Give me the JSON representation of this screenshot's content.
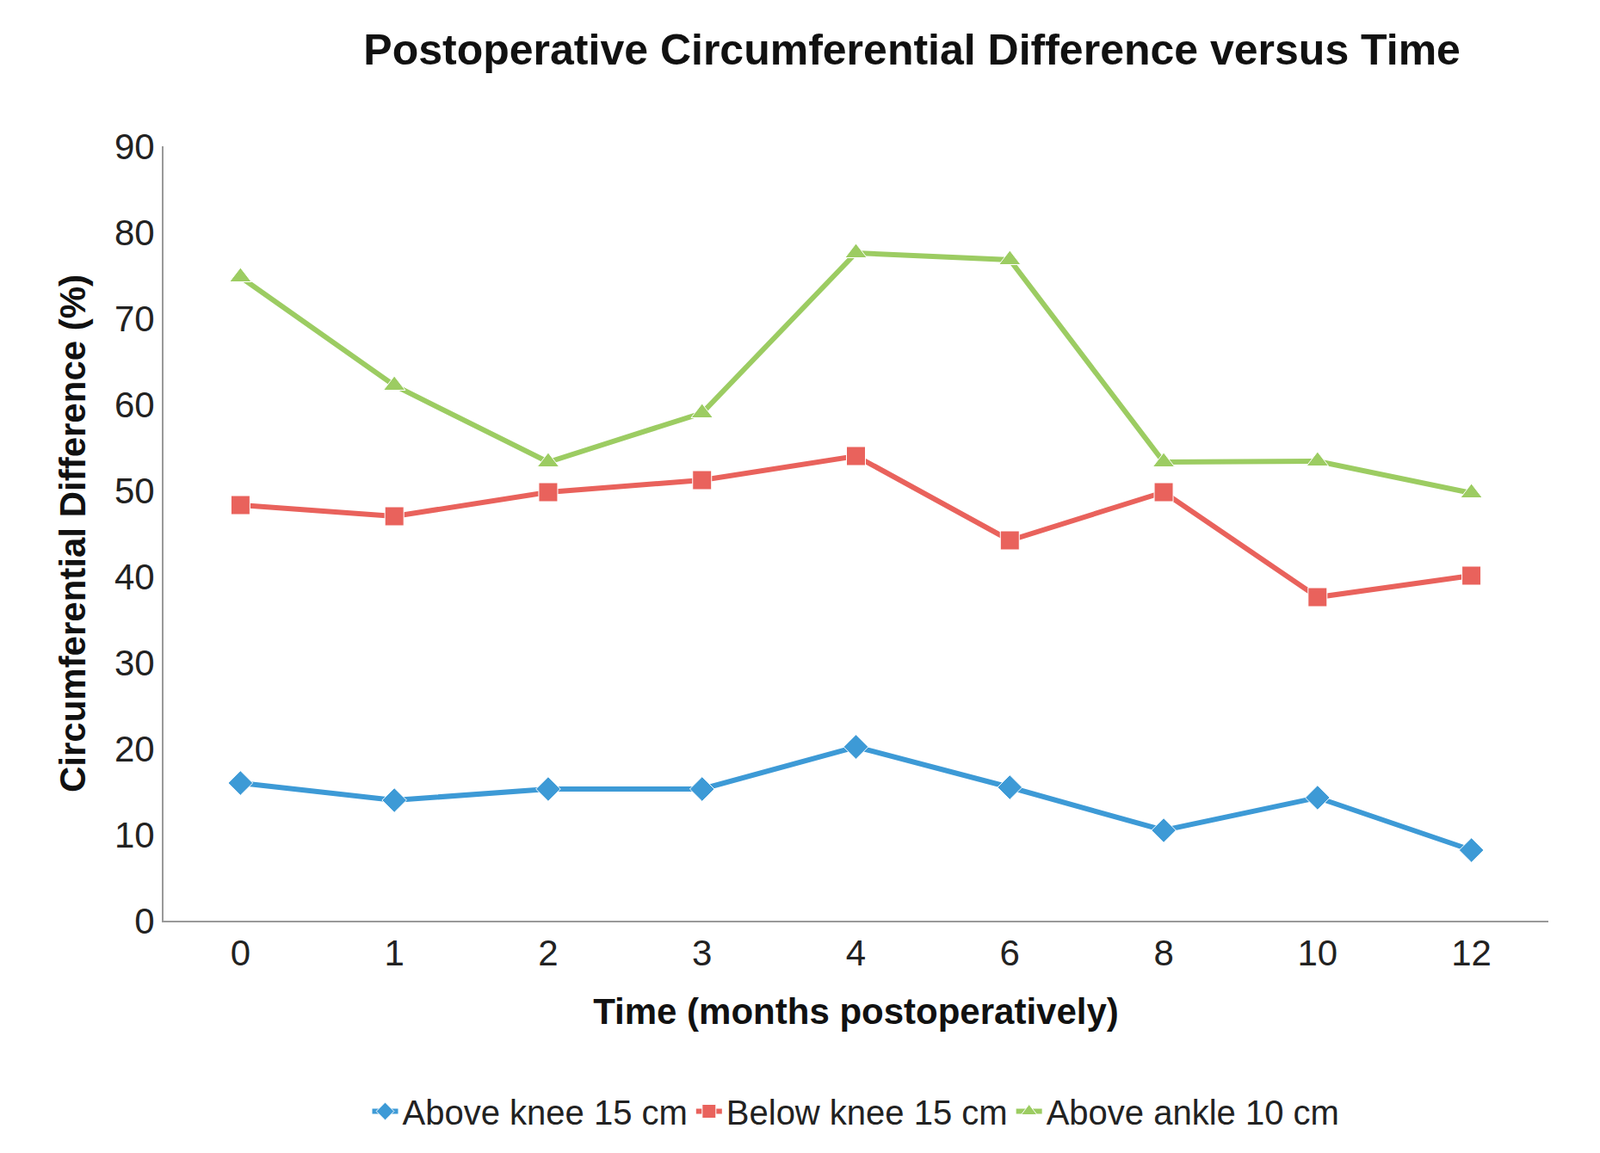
{
  "chart_data": {
    "type": "line",
    "title": "Postoperative Circumferential Difference versus Time",
    "x_label": "Time (months postoperatively)",
    "y_label": "Circumferential Difference (%)",
    "categories": [
      "0",
      "1",
      "2",
      "3",
      "4",
      "6",
      "8",
      "10",
      "12"
    ],
    "series": [
      {
        "name": "Above knee 15 cm",
        "color": "#3d9ad6",
        "marker": "diamond",
        "values": [
          16,
          14,
          15.3,
          15.3,
          20.2,
          15.5,
          10.5,
          14.3,
          8.2
        ]
      },
      {
        "name": "Below knee 15 cm",
        "color": "#e9625c",
        "marker": "square",
        "values": [
          48.3,
          47,
          49.8,
          51.2,
          54,
          44.2,
          49.8,
          37.6,
          40.1
        ]
      },
      {
        "name": "Above ankle 10 cm",
        "color": "#9ccc62",
        "marker": "triangle-up",
        "values": [
          74.8,
          62.2,
          53.3,
          59,
          77.6,
          76.8,
          53.3,
          53.4,
          49.7
        ]
      }
    ],
    "ylim": [
      0,
      90
    ],
    "yticks": [
      0,
      10,
      20,
      30,
      40,
      50,
      60,
      70,
      80,
      90
    ],
    "grid": false,
    "legend": "bottom"
  }
}
